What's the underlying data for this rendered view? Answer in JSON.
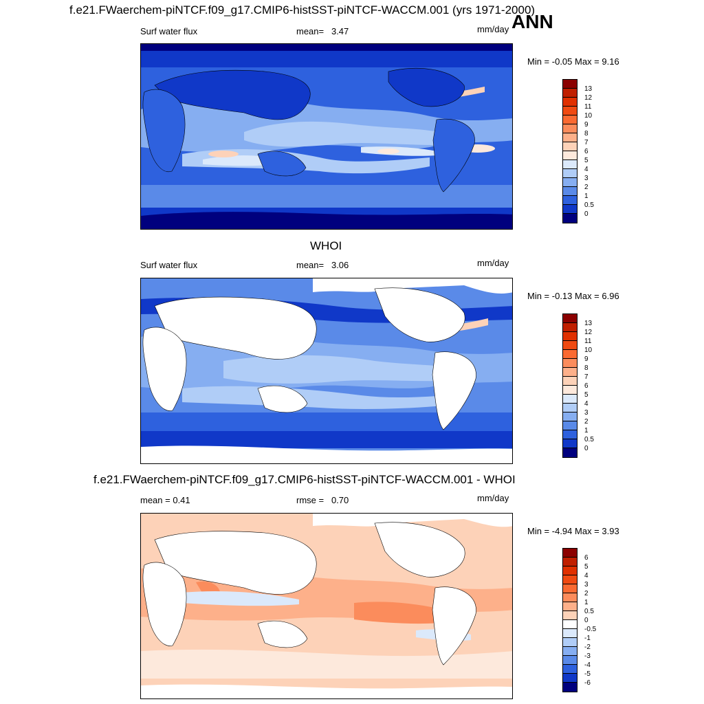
{
  "header": {
    "title": "f.e21.FWaerchem-piNTCF.f09_g17.CMIP6-histSST-piNTCF-WACCM.001 (yrs 1971-2000)",
    "season": "ANN"
  },
  "panels": [
    {
      "name": "model",
      "section_title": "",
      "left_text": "Surf water flux",
      "center_label": "mean=",
      "center_value": "3.47",
      "units": "mm/day",
      "minmax": "Min =  -0.05 Max =   9.16",
      "colorbar_levels": [
        "13",
        "12",
        "11",
        "10",
        "9",
        "8",
        "7",
        "6",
        "5",
        "4",
        "3",
        "2",
        "1",
        "0.5",
        "0"
      ],
      "colorbar_colors": [
        "#8b0000",
        "#c01f00",
        "#e03000",
        "#f04a12",
        "#fa6a32",
        "#fb8c5c",
        "#fdb08a",
        "#fdd2b8",
        "#fde9dc",
        "#dbe9fb",
        "#b0cdf7",
        "#86aef1",
        "#5a8ae8",
        "#2e61de",
        "#1038c8",
        "#00007e"
      ]
    },
    {
      "name": "obs",
      "section_title": "WHOI",
      "left_text": "Surf water flux",
      "center_label": "mean=",
      "center_value": "3.06",
      "units": "mm/day",
      "minmax": "Min =  -0.13 Max =   6.96",
      "colorbar_levels": [
        "13",
        "12",
        "11",
        "10",
        "9",
        "8",
        "7",
        "6",
        "5",
        "4",
        "3",
        "2",
        "1",
        "0.5",
        "0"
      ],
      "colorbar_colors": [
        "#8b0000",
        "#c01f00",
        "#e03000",
        "#f04a12",
        "#fa6a32",
        "#fb8c5c",
        "#fdb08a",
        "#fdd2b8",
        "#fde9dc",
        "#dbe9fb",
        "#b0cdf7",
        "#86aef1",
        "#5a8ae8",
        "#2e61de",
        "#1038c8",
        "#00007e"
      ]
    },
    {
      "name": "difference",
      "section_title": "f.e21.FWaerchem-piNTCF.f09_g17.CMIP6-histSST-piNTCF-WACCM.001 - WHOI",
      "left_text": "mean =   0.41",
      "center_label": "rmse =",
      "center_value": "0.70",
      "units": "mm/day",
      "minmax": "Min =  -4.94 Max =   3.93",
      "colorbar_levels": [
        "6",
        "5",
        "4",
        "3",
        "2",
        "1",
        "0.5",
        "0",
        "-0.5",
        "-1",
        "-2",
        "-3",
        "-4",
        "-5",
        "-6"
      ],
      "colorbar_colors": [
        "#8b0000",
        "#c01f00",
        "#e03000",
        "#f04a12",
        "#fa6a32",
        "#fb8c5c",
        "#fdb08a",
        "#fdd2b8",
        "#ffffff",
        "#dbe9fb",
        "#b0cdf7",
        "#86aef1",
        "#5a8ae8",
        "#2e61de",
        "#1038c8",
        "#00007e"
      ]
    }
  ],
  "chart_data": [
    {
      "type": "heatmap",
      "title": "f.e21.FWaerchem-piNTCF.f09_g17.CMIP6-histSST-piNTCF-WACCM.001 (yrs 1971-2000)",
      "variable": "Surf water flux",
      "units": "mm/day",
      "mean": 3.47,
      "min": -0.05,
      "max": 9.16,
      "contour_levels": [
        0,
        0.5,
        1,
        2,
        3,
        4,
        5,
        6,
        7,
        8,
        9,
        10,
        11,
        12,
        13
      ]
    },
    {
      "type": "heatmap",
      "title": "WHOI",
      "variable": "Surf water flux",
      "units": "mm/day",
      "mean": 3.06,
      "min": -0.13,
      "max": 6.96,
      "contour_levels": [
        0,
        0.5,
        1,
        2,
        3,
        4,
        5,
        6,
        7,
        8,
        9,
        10,
        11,
        12,
        13
      ]
    },
    {
      "type": "heatmap",
      "title": "f.e21.FWaerchem-piNTCF.f09_g17.CMIP6-histSST-piNTCF-WACCM.001 - WHOI",
      "units": "mm/day",
      "mean": 0.41,
      "rmse": 0.7,
      "min": -4.94,
      "max": 3.93,
      "contour_levels": [
        -6,
        -5,
        -4,
        -3,
        -2,
        -1,
        -0.5,
        0,
        0.5,
        1,
        2,
        3,
        4,
        5,
        6
      ]
    }
  ]
}
